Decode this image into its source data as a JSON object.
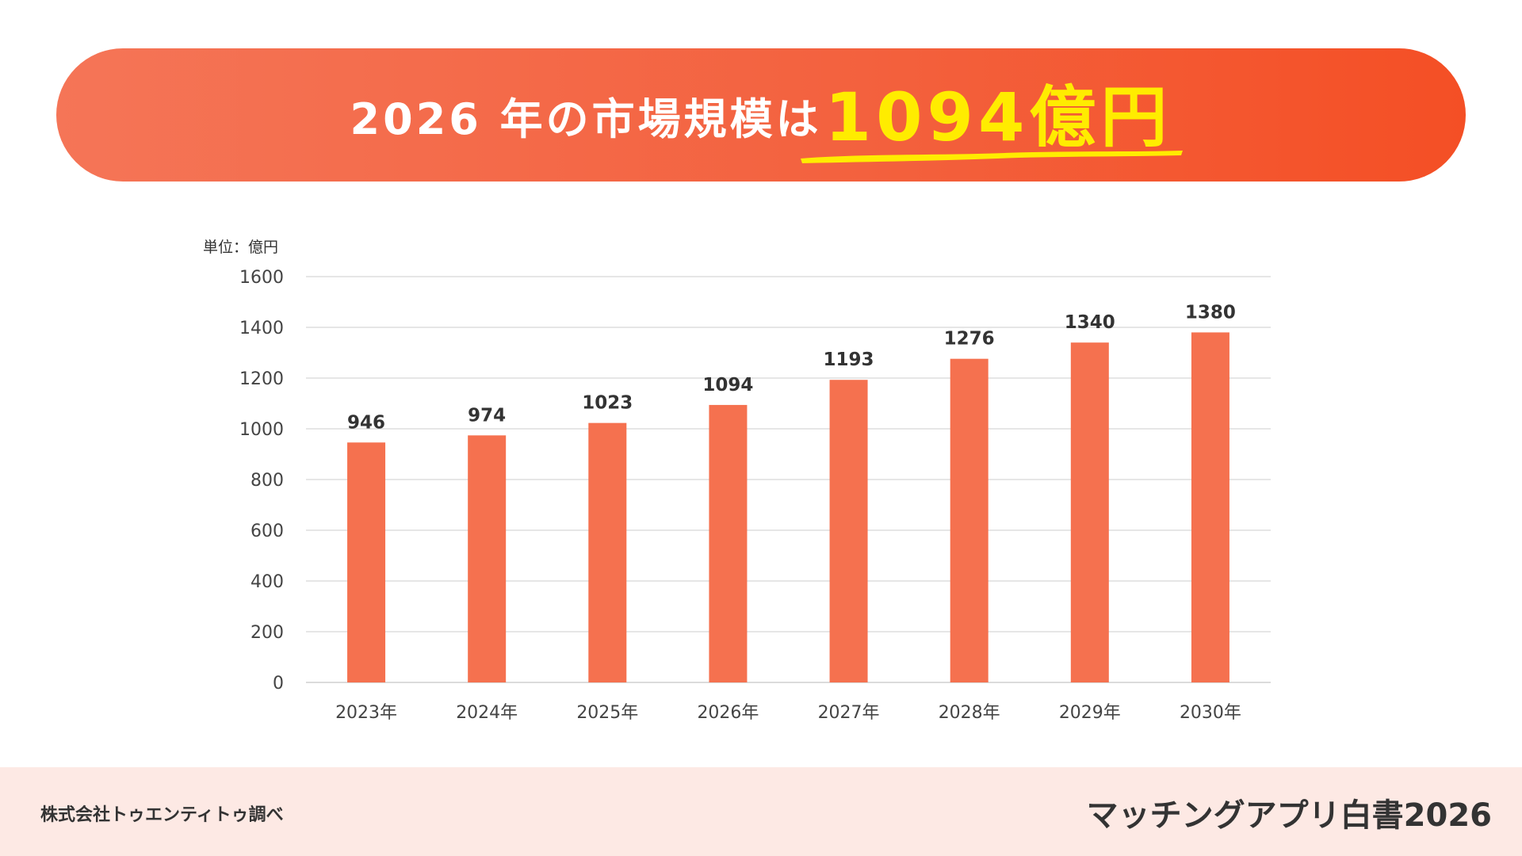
{
  "banner": {
    "title_prefix": "2026 年の市場規模は",
    "title_highlight": "1094億円",
    "colors": {
      "gradient_start": "#f57557",
      "gradient_end": "#f44f25",
      "highlight": "#ffec00"
    }
  },
  "chart_data": {
    "type": "bar",
    "unit_label": "単位：億円",
    "categories": [
      "2023年",
      "2024年",
      "2025年",
      "2026年",
      "2027年",
      "2028年",
      "2029年",
      "2030年"
    ],
    "values": [
      946,
      974,
      1023,
      1094,
      1193,
      1276,
      1340,
      1380
    ],
    "ylim": [
      0,
      1600
    ],
    "yticks": [
      0,
      200,
      400,
      600,
      800,
      1000,
      1200,
      1400,
      1600
    ],
    "grid": true,
    "bar_color": "#f5714f",
    "data_labels": true
  },
  "footer": {
    "source": "株式会社トゥエンティトゥ調べ",
    "brand": "マッチングアプリ白書2026",
    "background": "#fde9e4"
  }
}
